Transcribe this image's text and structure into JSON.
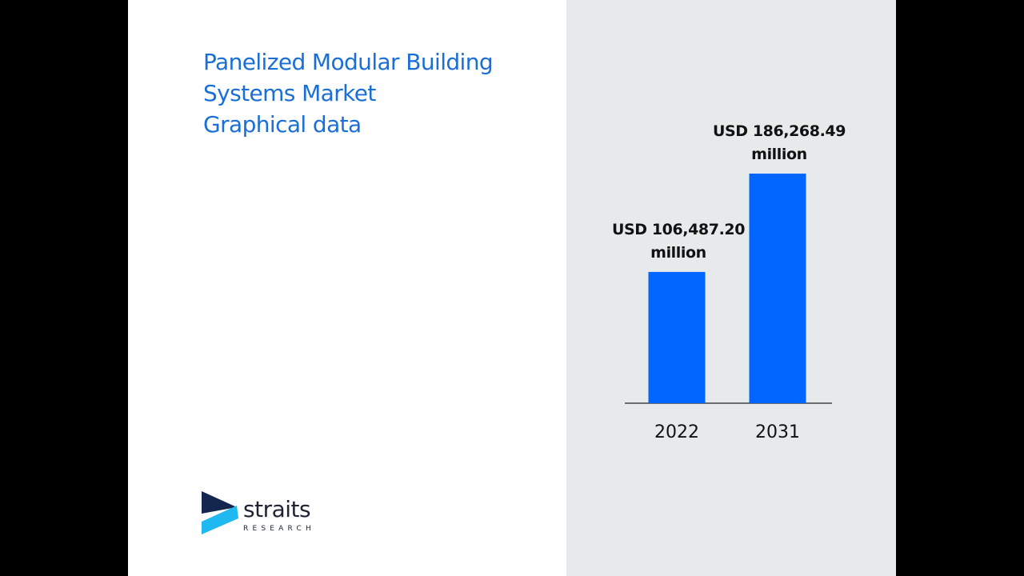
{
  "title_lines": [
    "Panelized Modular Building",
    "Systems Market",
    "Graphical data"
  ],
  "logo": {
    "word": "straits",
    "sub": "RESEARCH"
  },
  "chart_data": {
    "type": "bar",
    "title": "Panelized Modular Building Systems Market Graphical data",
    "categories": [
      "2022",
      "2031"
    ],
    "values": [
      106487.2,
      186268.49
    ],
    "data_labels": [
      [
        "USD 106,487.20",
        "million"
      ],
      [
        "USD 186,268.49",
        "million"
      ]
    ],
    "unit": "USD million",
    "bar_color": "#0066ff",
    "grid": false,
    "legend": "none"
  }
}
